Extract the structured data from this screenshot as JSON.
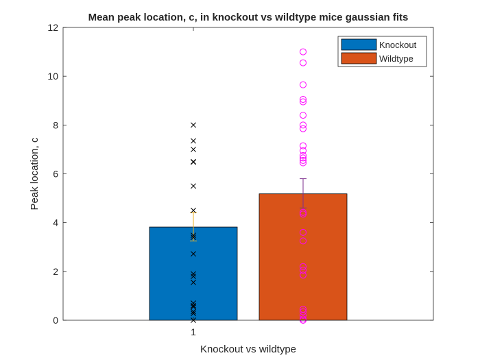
{
  "chart_data": {
    "type": "bar",
    "title": "Mean peak location, c, in knockout vs wildtype mice gaussian fits",
    "xlabel": "Knockout vs wildtype",
    "ylabel": "Peak location, c",
    "categories": [
      "1"
    ],
    "ylim": [
      0,
      12
    ],
    "yticks": [
      0,
      2,
      4,
      6,
      8,
      10,
      12
    ],
    "grid": false,
    "legend_position": "top-right",
    "series": [
      {
        "name": "Knockout",
        "color": "#0072BD",
        "mean": 3.82,
        "error": [
          3.25,
          4.42
        ],
        "error_color": "#EDB120",
        "marker": "x",
        "marker_color": "#000000",
        "points": [
          8.0,
          7.35,
          7.0,
          6.5,
          6.48,
          5.5,
          4.5,
          3.48,
          3.4,
          2.72,
          1.9,
          1.8,
          1.55,
          0.7,
          0.6,
          0.55,
          0.35,
          0.28,
          0.0
        ]
      },
      {
        "name": "Wildtype",
        "color": "#D95319",
        "mean": 5.18,
        "error": [
          4.6,
          5.8
        ],
        "error_color": "#7E2F8E",
        "marker": "o",
        "marker_color": "#FF00FF",
        "points": [
          11.0,
          10.55,
          9.65,
          9.05,
          8.95,
          8.4,
          8.0,
          7.85,
          7.15,
          6.95,
          6.75,
          6.65,
          6.55,
          6.45,
          4.42,
          4.35,
          3.6,
          3.25,
          2.2,
          2.05,
          1.85,
          0.45,
          0.35,
          0.2,
          0.05,
          0.0
        ]
      }
    ]
  }
}
